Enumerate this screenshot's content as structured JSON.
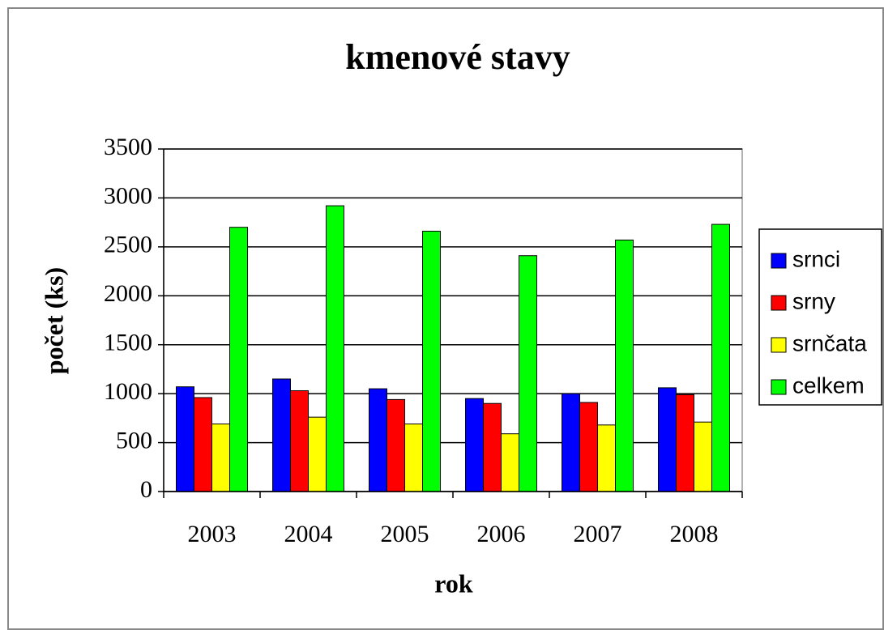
{
  "chart_data": {
    "type": "bar",
    "title": "kmenové stavy",
    "x_label": "rok",
    "y_label": "počet (ks)",
    "categories": [
      "2003",
      "2004",
      "2005",
      "2006",
      "2007",
      "2008"
    ],
    "series": [
      {
        "name": "srnci",
        "color": "#0000ff",
        "values": [
          1070,
          1150,
          1050,
          950,
          1000,
          1060
        ]
      },
      {
        "name": "srny",
        "color": "#ff0000",
        "values": [
          960,
          1030,
          940,
          900,
          910,
          990
        ]
      },
      {
        "name": "srnčata",
        "color": "#ffff00",
        "values": [
          690,
          760,
          690,
          590,
          680,
          710
        ]
      },
      {
        "name": "celkem",
        "color": "#00ff00",
        "values": [
          2700,
          2920,
          2660,
          2410,
          2570,
          2730
        ]
      }
    ],
    "ylim": [
      0,
      3500
    ],
    "yticks": [
      0,
      500,
      1000,
      1500,
      2000,
      2500,
      3000,
      3500
    ],
    "grid": true,
    "legend": "right"
  }
}
